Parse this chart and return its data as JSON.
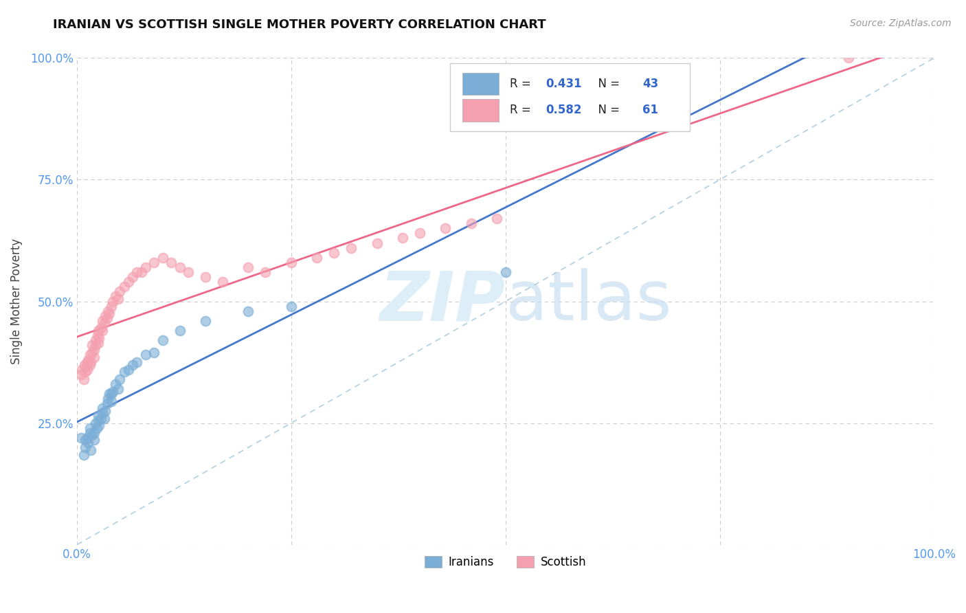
{
  "title": "IRANIAN VS SCOTTISH SINGLE MOTHER POVERTY CORRELATION CHART",
  "source": "Source: ZipAtlas.com",
  "ylabel": "Single Mother Poverty",
  "xlim": [
    0,
    1
  ],
  "ylim": [
    0,
    1
  ],
  "iranians_R": 0.431,
  "iranians_N": 43,
  "scottish_R": 0.582,
  "scottish_N": 61,
  "iranians_color": "#7aaed6",
  "scottish_color": "#f4a0b0",
  "iranians_line_color": "#4477cc",
  "scottish_line_color": "#ee6688",
  "diagonal_color": "#b0cfe0",
  "watermark_color": "#ddeef8",
  "background_color": "#ffffff",
  "grid_color": "#cccccc",
  "iranians_x": [
    0.005,
    0.008,
    0.01,
    0.01,
    0.012,
    0.013,
    0.015,
    0.015,
    0.016,
    0.018,
    0.02,
    0.02,
    0.022,
    0.023,
    0.025,
    0.025,
    0.026,
    0.028,
    0.03,
    0.03,
    0.032,
    0.033,
    0.035,
    0.036,
    0.038,
    0.04,
    0.04,
    0.042,
    0.045,
    0.048,
    0.05,
    0.055,
    0.06,
    0.065,
    0.07,
    0.08,
    0.09,
    0.1,
    0.12,
    0.15,
    0.2,
    0.25,
    0.5
  ],
  "iranians_y": [
    0.22,
    0.185,
    0.2,
    0.215,
    0.22,
    0.21,
    0.23,
    0.24,
    0.195,
    0.225,
    0.215,
    0.23,
    0.25,
    0.24,
    0.255,
    0.265,
    0.245,
    0.26,
    0.27,
    0.28,
    0.26,
    0.275,
    0.29,
    0.3,
    0.31,
    0.295,
    0.31,
    0.315,
    0.33,
    0.32,
    0.34,
    0.355,
    0.36,
    0.37,
    0.375,
    0.39,
    0.395,
    0.42,
    0.44,
    0.46,
    0.48,
    0.49,
    0.56
  ],
  "scottish_x": [
    0.005,
    0.006,
    0.008,
    0.009,
    0.01,
    0.01,
    0.012,
    0.012,
    0.013,
    0.015,
    0.015,
    0.016,
    0.018,
    0.018,
    0.02,
    0.02,
    0.022,
    0.022,
    0.024,
    0.025,
    0.025,
    0.026,
    0.028,
    0.03,
    0.03,
    0.032,
    0.033,
    0.035,
    0.036,
    0.038,
    0.04,
    0.042,
    0.045,
    0.048,
    0.05,
    0.055,
    0.06,
    0.065,
    0.07,
    0.075,
    0.08,
    0.09,
    0.1,
    0.11,
    0.12,
    0.13,
    0.15,
    0.17,
    0.2,
    0.22,
    0.25,
    0.28,
    0.3,
    0.32,
    0.35,
    0.38,
    0.4,
    0.43,
    0.46,
    0.49,
    0.9
  ],
  "scottish_y": [
    0.35,
    0.36,
    0.34,
    0.37,
    0.355,
    0.365,
    0.375,
    0.36,
    0.38,
    0.37,
    0.39,
    0.375,
    0.395,
    0.41,
    0.385,
    0.4,
    0.42,
    0.41,
    0.43,
    0.415,
    0.44,
    0.425,
    0.445,
    0.44,
    0.46,
    0.455,
    0.47,
    0.465,
    0.48,
    0.475,
    0.49,
    0.5,
    0.51,
    0.505,
    0.52,
    0.53,
    0.54,
    0.55,
    0.56,
    0.56,
    0.57,
    0.58,
    0.59,
    0.58,
    0.57,
    0.56,
    0.55,
    0.54,
    0.57,
    0.56,
    0.58,
    0.59,
    0.6,
    0.61,
    0.62,
    0.63,
    0.64,
    0.65,
    0.66,
    0.67,
    1.0
  ],
  "title_fontsize": 13,
  "source_fontsize": 10,
  "tick_fontsize": 12,
  "ylabel_fontsize": 12
}
